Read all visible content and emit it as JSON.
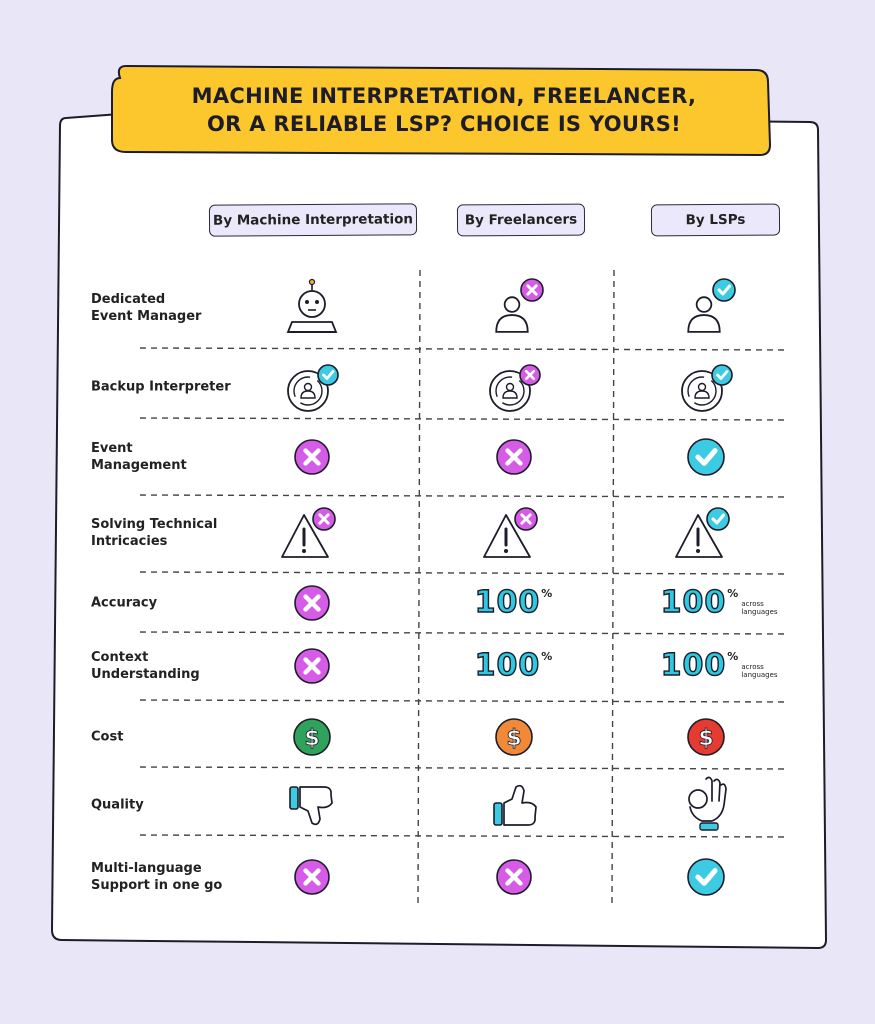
{
  "title": "MACHINE INTERPRETATION, FREELANCER,\nOR A RELIABLE LSP? CHOICE IS YOURS!",
  "columns": [
    "By Machine Interpretation",
    "By Freelancers",
    "By LSPs"
  ],
  "rows": [
    {
      "label": "Dedicated\nEvent Manager",
      "cells": [
        {
          "icon": "robot-icon"
        },
        {
          "icon": "person-cross-icon"
        },
        {
          "icon": "person-check-icon"
        }
      ]
    },
    {
      "label": "Backup Interpreter",
      "cells": [
        {
          "icon": "backup-check-icon"
        },
        {
          "icon": "backup-cross-icon"
        },
        {
          "icon": "backup-check-icon"
        }
      ]
    },
    {
      "label": "Event\nManagement",
      "cells": [
        {
          "icon": "cross-icon"
        },
        {
          "icon": "cross-icon"
        },
        {
          "icon": "check-icon"
        }
      ]
    },
    {
      "label": "Solving Technical\nIntricacies",
      "cells": [
        {
          "icon": "warning-cross-icon"
        },
        {
          "icon": "warning-cross-icon"
        },
        {
          "icon": "warning-check-icon"
        }
      ]
    },
    {
      "label": "Accuracy",
      "cells": [
        {
          "icon": "cross-icon"
        },
        {
          "icon": "hundred",
          "value": "100",
          "unit": "%"
        },
        {
          "icon": "hundred",
          "value": "100",
          "unit": "%",
          "note": "across\nlanguages"
        }
      ]
    },
    {
      "label": "Context\nUnderstanding",
      "cells": [
        {
          "icon": "cross-icon"
        },
        {
          "icon": "hundred",
          "value": "100",
          "unit": "%"
        },
        {
          "icon": "hundred",
          "value": "100",
          "unit": "%",
          "note": "across\nlanguages"
        }
      ]
    },
    {
      "label": "Cost",
      "cells": [
        {
          "icon": "dollar-icon",
          "color": "#2fa35b"
        },
        {
          "icon": "dollar-icon",
          "color": "#f08a38"
        },
        {
          "icon": "dollar-icon",
          "color": "#e63b30"
        }
      ]
    },
    {
      "label": "Quality",
      "cells": [
        {
          "icon": "thumbs-down-icon"
        },
        {
          "icon": "thumbs-up-icon"
        },
        {
          "icon": "ok-hand-icon"
        }
      ]
    },
    {
      "label": "Multi-language\nSupport in one go",
      "cells": [
        {
          "icon": "cross-icon"
        },
        {
          "icon": "cross-icon"
        },
        {
          "icon": "check-icon"
        }
      ]
    }
  ],
  "colors": {
    "background": "#e9e6f8",
    "banner": "#fcc72c",
    "cross": "#d65be6",
    "check": "#3ccbe2",
    "header_fill": "#ece8fb",
    "ink": "#1c1c2a"
  }
}
